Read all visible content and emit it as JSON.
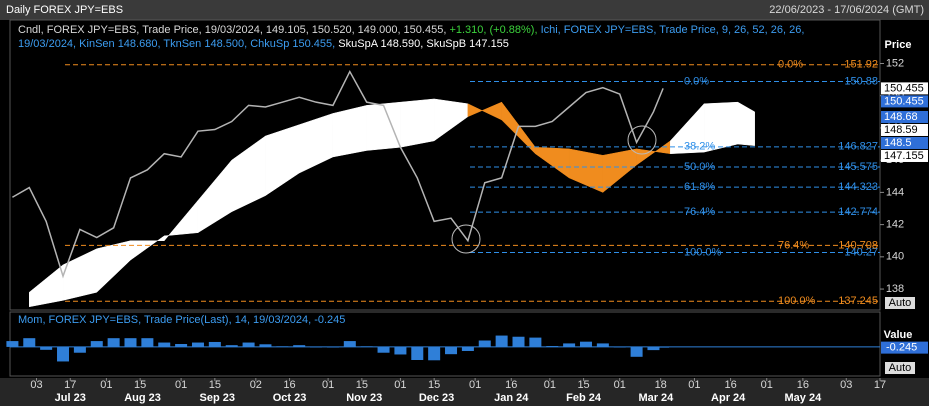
{
  "header": {
    "title": "Daily FOREX JPY=EBS",
    "range": "22/06/2023 - 17/06/2024 (GMT)"
  },
  "legend": {
    "price": "Cndl, FOREX JPY=EBS, Trade Price, 19/03/2024, 149.105, 150.520, 149.000, 150.455,",
    "change": "+1.310, (+0.88%),",
    "ichi": "Ichi, FOREX JPY=EBS, Trade Price,  9, 26, 52, 26, 26,",
    "ichi_values": "19/03/2024, KinSen 148.680, TknSen 148.500, ChkuSp 150.455,",
    "spans": "SkuSpA 148.590, SkuSpB 147.155"
  },
  "chart_data": [
    {
      "type": "line",
      "axis_label": "Price",
      "xlim": [
        "2023-06-22",
        "2024-06-17"
      ],
      "ylim": [
        136.7,
        154.7
      ],
      "yticks": [
        138,
        140,
        142,
        144,
        146,
        148,
        150,
        152
      ],
      "xticks": [
        {
          "value": "2023-07-03",
          "label": "03"
        },
        {
          "value": "2023-07-17",
          "label": "17"
        },
        {
          "value": "2023-08-01",
          "label": "01"
        },
        {
          "value": "2023-08-15",
          "label": "15"
        },
        {
          "value": "2023-09-01",
          "label": "01"
        },
        {
          "value": "2023-09-15",
          "label": "15"
        },
        {
          "value": "2023-10-02",
          "label": "02"
        },
        {
          "value": "2023-10-16",
          "label": "16"
        },
        {
          "value": "2023-11-01",
          "label": "01"
        },
        {
          "value": "2023-11-15",
          "label": "15"
        },
        {
          "value": "2023-12-01",
          "label": "01"
        },
        {
          "value": "2023-12-15",
          "label": "15"
        },
        {
          "value": "2024-01-01",
          "label": "01"
        },
        {
          "value": "2024-01-16",
          "label": "16"
        },
        {
          "value": "2024-02-01",
          "label": "01"
        },
        {
          "value": "2024-02-15",
          "label": "15"
        },
        {
          "value": "2024-03-01",
          "label": "01"
        },
        {
          "value": "2024-03-18",
          "label": "18"
        },
        {
          "value": "2024-04-01",
          "label": "01"
        },
        {
          "value": "2024-04-16",
          "label": "16"
        },
        {
          "value": "2024-05-01",
          "label": "01"
        },
        {
          "value": "2024-05-16",
          "label": "16"
        },
        {
          "value": "2024-06-03",
          "label": "03"
        },
        {
          "value": "2024-06-17",
          "label": "17"
        }
      ],
      "month_labels": [
        {
          "value": "2023-07-17",
          "label": "Jul 23"
        },
        {
          "value": "2023-08-16",
          "label": "Aug 23"
        },
        {
          "value": "2023-09-16",
          "label": "Sep 23"
        },
        {
          "value": "2023-10-16",
          "label": "Oct 23"
        },
        {
          "value": "2023-11-16",
          "label": "Nov 23"
        },
        {
          "value": "2023-12-16",
          "label": "Dec 23"
        },
        {
          "value": "2024-01-16",
          "label": "Jan 24"
        },
        {
          "value": "2024-02-15",
          "label": "Feb 24"
        },
        {
          "value": "2024-03-16",
          "label": "Mar 24"
        },
        {
          "value": "2024-04-15",
          "label": "Apr 24"
        },
        {
          "value": "2024-05-16",
          "label": "May 24"
        }
      ],
      "x": [
        "2023-06-23",
        "2023-06-30",
        "2023-07-07",
        "2023-07-14",
        "2023-07-21",
        "2023-07-28",
        "2023-08-04",
        "2023-08-11",
        "2023-08-18",
        "2023-08-25",
        "2023-09-01",
        "2023-09-08",
        "2023-09-15",
        "2023-09-22",
        "2023-09-29",
        "2023-10-06",
        "2023-10-13",
        "2023-10-20",
        "2023-10-27",
        "2023-11-03",
        "2023-11-10",
        "2023-11-17",
        "2023-11-24",
        "2023-12-01",
        "2023-12-08",
        "2023-12-15",
        "2023-12-22",
        "2023-12-29",
        "2024-01-05",
        "2024-01-12",
        "2024-01-19",
        "2024-01-26",
        "2024-02-02",
        "2024-02-09",
        "2024-02-16",
        "2024-02-23",
        "2024-03-01",
        "2024-03-08",
        "2024-03-15",
        "2024-03-19"
      ],
      "series": [
        {
          "color": "#b4b4b4",
          "values": [
            143.7,
            144.3,
            142.2,
            138.8,
            141.7,
            141.2,
            141.8,
            144.9,
            145.4,
            146.4,
            146.2,
            147.8,
            147.9,
            148.4,
            149.4,
            149.3,
            149.6,
            149.9,
            149.6,
            149.4,
            151.5,
            149.6,
            149.4,
            146.8,
            144.9,
            142.2,
            142.4,
            141.0,
            144.6,
            144.9,
            148.1,
            148.1,
            148.4,
            149.3,
            150.2,
            150.5,
            150.1,
            147.1,
            149.0,
            150.455
          ]
        }
      ],
      "cloud": {
        "x": [
          "2023-06-30",
          "2023-07-14",
          "2023-07-28",
          "2023-08-11",
          "2023-08-25",
          "2023-09-08",
          "2023-09-22",
          "2023-10-06",
          "2023-10-20",
          "2023-11-03",
          "2023-11-17",
          "2023-12-01",
          "2023-12-15",
          "2023-12-29",
          "2024-01-12",
          "2024-01-26",
          "2024-02-09",
          "2024-02-23",
          "2024-03-08",
          "2024-03-22",
          "2024-04-05",
          "2024-04-19",
          "2024-04-26"
        ],
        "span_a": [
          137.8,
          139.5,
          140.5,
          141.0,
          141.0,
          143.5,
          146.0,
          147.5,
          148.2,
          148.9,
          149.4,
          149.6,
          149.8,
          149.5,
          148.5,
          146.4,
          144.9,
          144.0,
          145.7,
          147.2,
          149.5,
          149.6,
          149.0
        ],
        "span_b": [
          136.9,
          137.3,
          137.8,
          139.8,
          141.3,
          141.5,
          142.8,
          143.8,
          145.2,
          146.2,
          146.6,
          146.8,
          147.2,
          148.7,
          149.6,
          146.8,
          146.7,
          146.3,
          146.7,
          146.4,
          146.5,
          147.0,
          146.9
        ],
        "up_color": "#ffffff",
        "down_color": "#f08c1e"
      },
      "fib_sets": [
        {
          "color": "#2f8fe8",
          "levels": [
            {
              "label": "0.0%",
              "value": 150.88
            },
            {
              "label": "38.2%",
              "value": 146.827
            },
            {
              "label": "50.0%",
              "value": 145.575
            },
            {
              "label": "61.8%",
              "value": 144.323
            },
            {
              "label": "76.4%",
              "value": 142.774
            },
            {
              "label": "100.0%",
              "value": 140.27
            }
          ]
        },
        {
          "color": "#f08c1e",
          "levels": [
            {
              "label": "0.0%",
              "value": 151.92
            },
            {
              "label": "76.4%",
              "value": 140.708
            },
            {
              "label": "100.0%",
              "value": 137.245
            }
          ]
        }
      ],
      "price_tags": [
        {
          "value": 150.455,
          "color": "#ffffff",
          "text_color": "#000000"
        },
        {
          "value": 150.455,
          "color": "#2f6fd8",
          "text_color": "#ffffff"
        },
        {
          "value": 148.68,
          "color": "#2f6fd8",
          "text_color": "#ffffff"
        },
        {
          "value": 148.59,
          "color": "#ffffff",
          "text_color": "#000000"
        },
        {
          "value": 148.5,
          "color": "#2f6fd8",
          "text_color": "#ffffff"
        },
        {
          "value": 147.155,
          "color": "#ffffff",
          "text_color": "#000000"
        }
      ],
      "scale_button": "Auto"
    },
    {
      "type": "bar",
      "title": "Mom, FOREX JPY=EBS, Trade Price(Last), 14, 19/03/2024, -0.245",
      "axis_label": "Value",
      "color": "#2f7fd8",
      "ylim": [
        -10,
        12
      ],
      "last_value": -0.245,
      "x": [
        "2023-06-23",
        "2023-06-30",
        "2023-07-07",
        "2023-07-14",
        "2023-07-21",
        "2023-07-28",
        "2023-08-04",
        "2023-08-11",
        "2023-08-18",
        "2023-08-25",
        "2023-09-01",
        "2023-09-08",
        "2023-09-15",
        "2023-09-22",
        "2023-09-29",
        "2023-10-06",
        "2023-10-13",
        "2023-10-20",
        "2023-10-27",
        "2023-11-03",
        "2023-11-10",
        "2023-11-17",
        "2023-11-24",
        "2023-12-01",
        "2023-12-08",
        "2023-12-15",
        "2023-12-22",
        "2023-12-29",
        "2024-01-05",
        "2024-01-12",
        "2024-01-19",
        "2024-01-26",
        "2024-02-02",
        "2024-02-09",
        "2024-02-16",
        "2024-02-23",
        "2024-03-01",
        "2024-03-08",
        "2024-03-15",
        "2024-03-19"
      ],
      "values": [
        2,
        3,
        -1,
        -5,
        -2,
        2,
        3,
        3,
        3,
        1.5,
        1,
        1.5,
        1.7,
        0.6,
        1.5,
        0.9,
        0.2,
        0.6,
        0,
        -0.2,
        2,
        0.2,
        -2,
        -2.6,
        -4.5,
        -4.6,
        -2.5,
        -1.4,
        2.2,
        3.9,
        3.5,
        3.2,
        0.3,
        1.2,
        1.8,
        1.2,
        -0.1,
        -3.4,
        -1.1,
        -0.245
      ],
      "scale_button": "Auto"
    }
  ]
}
